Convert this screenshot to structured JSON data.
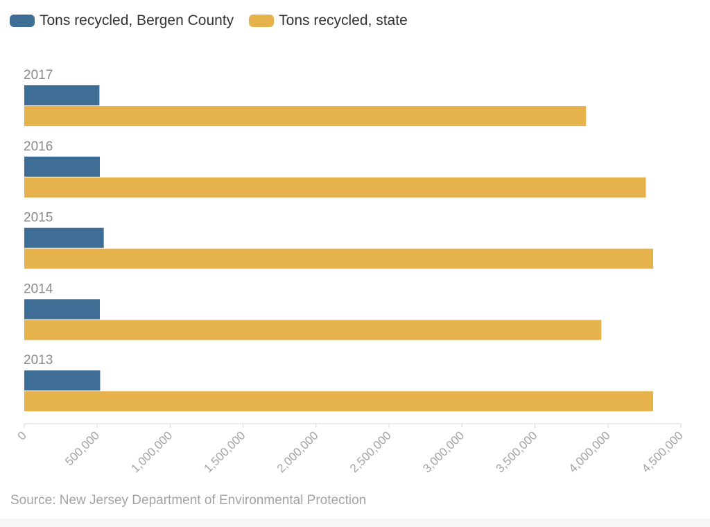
{
  "chart_data": {
    "type": "bar",
    "orientation": "horizontal",
    "categories": [
      "2017",
      "2016",
      "2015",
      "2014",
      "2013"
    ],
    "series": [
      {
        "name": "Tons recycled, Bergen County",
        "color": "#3e6d96",
        "values": [
          515000,
          518000,
          545000,
          518000,
          520000
        ]
      },
      {
        "name": "Tons recycled, state",
        "color": "#e6b24c",
        "values": [
          3850000,
          4260000,
          4310000,
          3955000,
          4310000
        ]
      }
    ],
    "xlim": [
      0,
      4500000
    ],
    "xticks": [
      {
        "value": 0,
        "label": "0"
      },
      {
        "value": 500000,
        "label": "500,000"
      },
      {
        "value": 1000000,
        "label": "1,000,000"
      },
      {
        "value": 1500000,
        "label": "1,500,000"
      },
      {
        "value": 2000000,
        "label": "2,000,000"
      },
      {
        "value": 2500000,
        "label": "2,500,000"
      },
      {
        "value": 3000000,
        "label": "3,000,000"
      },
      {
        "value": 3500000,
        "label": "3,500,000"
      },
      {
        "value": 4000000,
        "label": "4,000,000"
      },
      {
        "value": 4500000,
        "label": "4,500,000"
      }
    ],
    "legend_position": "top-left",
    "grid": false
  },
  "source": "Source: New Jersey Department of Environmental Protection"
}
